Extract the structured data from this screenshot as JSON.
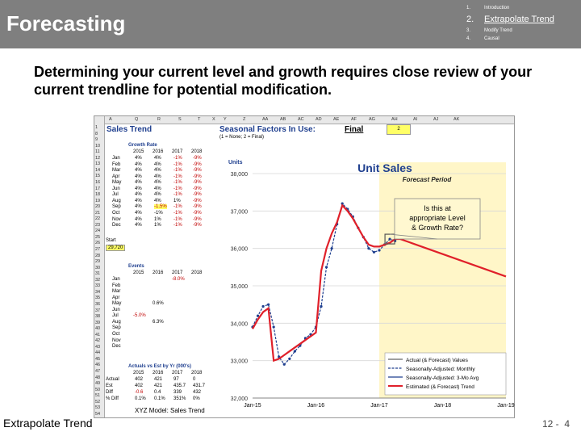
{
  "header": {
    "title": "Forecasting",
    "agenda": [
      {
        "num": "1.",
        "label": "Introduction"
      },
      {
        "num": "2.",
        "label": "Extrapolate Trend"
      },
      {
        "num": "3.",
        "label": "Modify Trend"
      },
      {
        "num": "4.",
        "label": "Causal"
      }
    ]
  },
  "heading": "Determining your current level and growth requires close review of your current trendline for potential modification.",
  "sheet": {
    "col_headers": [
      "A",
      "Q",
      "R",
      "S",
      "T",
      "X",
      "Y",
      "Z",
      "AA",
      "AB",
      "AC",
      "AD",
      "AE",
      "AF",
      "AG",
      "AH",
      "AI",
      "AJ",
      "AK"
    ],
    "row_numbers": [
      "1",
      "8",
      "9",
      "10",
      "11",
      "12",
      "13",
      "14",
      "15",
      "16",
      "17",
      "18",
      "19",
      "20",
      "21",
      "22",
      "23",
      "24",
      "25",
      "26",
      "27",
      "28",
      "29",
      "30",
      "31",
      "32",
      "33",
      "34",
      "35",
      "36",
      "37",
      "38",
      "39",
      "40",
      "41",
      "42",
      "43",
      "44",
      "45",
      "46",
      "47",
      "48",
      "49",
      "50",
      "51",
      "52",
      "53",
      "54"
    ],
    "sales_trend_title": "Sales Trend",
    "seasonal_title": "Seasonal Factors In Use:",
    "seasonal_value": "Final",
    "seasonal_index": "2",
    "seasonal_note": "(1 = None; 2 = Final)",
    "growth_rate_title": "Growth Rate",
    "years": [
      "2015",
      "2016",
      "2017",
      "2018"
    ],
    "months": [
      "Jan",
      "Feb",
      "Mar",
      "Apr",
      "May",
      "Jun",
      "Jul",
      "Aug",
      "Sep",
      "Oct",
      "Nov",
      "Dec"
    ],
    "growth_rows": [
      [
        "4%",
        "4%",
        "-1%",
        "-9%"
      ],
      [
        "4%",
        "4%",
        "-1%",
        "-9%"
      ],
      [
        "4%",
        "4%",
        "-1%",
        "-9%"
      ],
      [
        "4%",
        "4%",
        "-1%",
        "-9%"
      ],
      [
        "4%",
        "4%",
        "-1%",
        "-9%"
      ],
      [
        "4%",
        "4%",
        "-1%",
        "-9%"
      ],
      [
        "4%",
        "4%",
        "-1%",
        "-9%"
      ],
      [
        "4%",
        "4%",
        "1%",
        "-9%"
      ],
      [
        "4%",
        "-1.5%",
        "-1%",
        "-9%"
      ],
      [
        "4%",
        "-1%",
        "-1%",
        "-9%"
      ],
      [
        "4%",
        "1%",
        "-1%",
        "-9%"
      ],
      [
        "4%",
        "1%",
        "-1%",
        "-9%"
      ]
    ],
    "start_label": "Start",
    "start_value": "29,720",
    "events_title": "Events",
    "events_jan_2017": "-8.0%",
    "events_may": "0.6%",
    "events_jul": "-5.0%",
    "events_aug": "6.3%",
    "actuals_title": "Actuals vs Est by Yr (000's)",
    "actuals_rows": [
      {
        "label": "Actual",
        "values": [
          "402",
          "421",
          "97",
          "0"
        ]
      },
      {
        "label": "Est",
        "values": [
          "402",
          "421",
          "435.7",
          "431.7"
        ]
      },
      {
        "label": "Diff",
        "values": [
          "-0.6",
          "0.4",
          "339",
          "432"
        ]
      },
      {
        "label": "% Diff",
        "values": [
          "0.1%",
          "0.1%",
          "351%",
          "0%"
        ]
      }
    ]
  },
  "chart_data": {
    "type": "line",
    "title": "Unit Sales",
    "ylabel": "Units",
    "ylim": [
      32000,
      38000
    ],
    "yticks": [
      "32,000",
      "33,000",
      "34,000",
      "35,000",
      "36,000",
      "37,000",
      "38,000"
    ],
    "xticks": [
      "Jan-15",
      "Jan-16",
      "Jan-17",
      "Jan-18",
      "Jan-19"
    ],
    "forecast_label": "Forecast Period",
    "callout": "Is this at appropriate Level & Growth Rate?",
    "legend": [
      "Actual (& Forecast) Values",
      "Seasonally-Adjusted: Monthly",
      "Seasonally-Adjusted: 3-Mo Avg",
      "Estimated (& Forecast) Trend"
    ],
    "series": [
      {
        "name": "Seasonally-Adjusted: Monthly",
        "color": "#1f3f8f",
        "x": [
          0,
          1,
          2,
          3,
          4,
          5,
          6,
          7,
          8,
          9,
          10,
          11,
          12,
          13,
          14,
          15,
          16,
          17,
          18,
          19,
          20,
          21,
          22,
          23,
          24,
          25,
          26,
          27
        ],
        "values": [
          33900,
          34200,
          34450,
          34500,
          33900,
          33100,
          32900,
          33050,
          33250,
          33400,
          33600,
          33700,
          33900,
          34450,
          35500,
          36000,
          36650,
          37200,
          37050,
          36850,
          36550,
          36300,
          36000,
          35900,
          35950,
          36100,
          36250,
          36200
        ]
      },
      {
        "name": "Estimated (& Forecast) Trend",
        "color": "#e0202a",
        "x": [
          0,
          1,
          2,
          3,
          4,
          5,
          6,
          7,
          8,
          9,
          10,
          11,
          12,
          13,
          14,
          15,
          16,
          17,
          18,
          19,
          20,
          21,
          22,
          23,
          24,
          25,
          26,
          27,
          28,
          48
        ],
        "values": [
          33850,
          34100,
          34300,
          34400,
          33000,
          33050,
          33150,
          33250,
          33350,
          33450,
          33550,
          33650,
          33750,
          35400,
          36000,
          36400,
          36700,
          37150,
          37000,
          36800,
          36550,
          36300,
          36100,
          36050,
          36050,
          36100,
          36150,
          36250,
          36250,
          35250
        ]
      }
    ]
  }
}
